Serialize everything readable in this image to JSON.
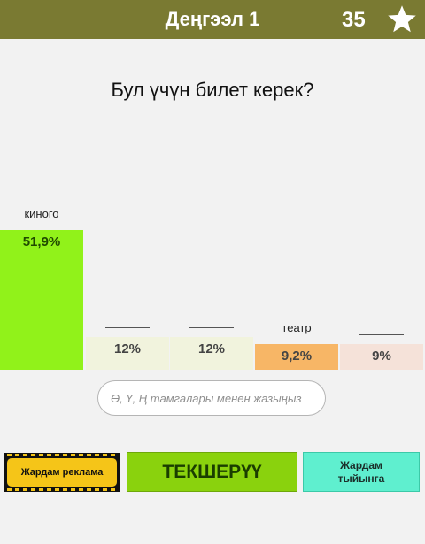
{
  "header": {
    "title": "Деңгээл 1",
    "score": "35",
    "bar_color": "#7a7a32",
    "star_icon": "star-icon"
  },
  "question": "Бул үчүн билет керек?",
  "answers": [
    {
      "label": "киного",
      "percent": "51,9%",
      "value": 51.9,
      "revealed": true,
      "color": "#91f21a"
    },
    {
      "label": "______",
      "percent": "12%",
      "value": 12,
      "revealed": false,
      "color": "#f1f3dd"
    },
    {
      "label": "______",
      "percent": "12%",
      "value": 12,
      "revealed": false,
      "color": "#f1f3dd"
    },
    {
      "label": "театр",
      "percent": "9,2%",
      "value": 9.2,
      "revealed": true,
      "color": "#f7b666"
    },
    {
      "label": "______",
      "percent": "9%",
      "value": 9,
      "revealed": false,
      "color": "#f5e2d9"
    }
  ],
  "input": {
    "placeholder": "Ө, Ү, Ң тамгалары менен жазыңыз",
    "value": ""
  },
  "buttons": {
    "ad_label": "Жардам реклама",
    "check_label": "ТЕКШЕРҮҮ",
    "help_label": "Жардам тыйынга"
  }
}
